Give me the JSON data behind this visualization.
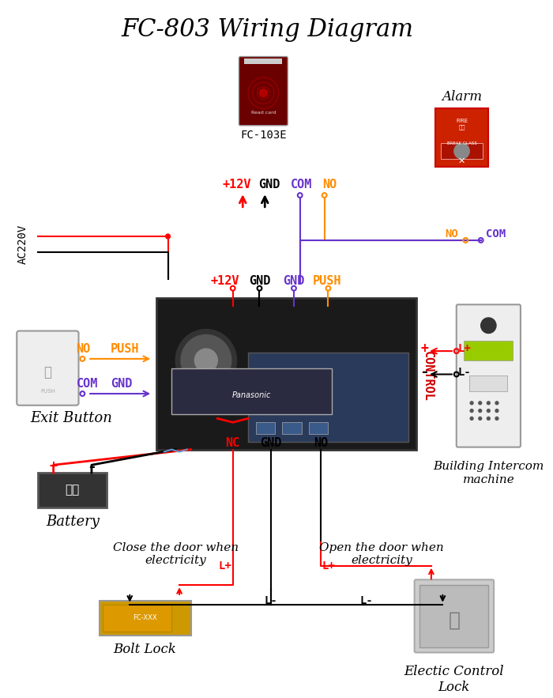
{
  "title": "FC-803 Wiring Diagram",
  "title_fontsize": 22,
  "title_font": "serif",
  "bg_color": "#ffffff",
  "colors": {
    "red": "#ff0000",
    "black": "#000000",
    "orange": "#ff8c00",
    "blue_purple": "#6633cc",
    "dark_red": "#cc0000",
    "gray": "#888888",
    "green": "#66cc00",
    "control_red": "#cc0000"
  },
  "labels": {
    "plus12v": "+12V",
    "gnd": "GND",
    "com": "COM",
    "no": "NO",
    "push": "PUSH",
    "nc": "NC",
    "lplus": "L+",
    "lminus": "L-",
    "ac220v": "AC220V",
    "control": "CONTROL",
    "fc103e": "FC-103E",
    "alarm": "Alarm",
    "exit_button": "Exit Button",
    "building_intercom": "Building Intercom\nmachine",
    "battery": "Battery",
    "close_door": "Close the door when\nelectricity",
    "open_door": "Open the door when\nelectricity",
    "bolt_lock": "Bolt Lock",
    "electric_lock": "Electic Control\nLock",
    "dianchi": "电池"
  }
}
